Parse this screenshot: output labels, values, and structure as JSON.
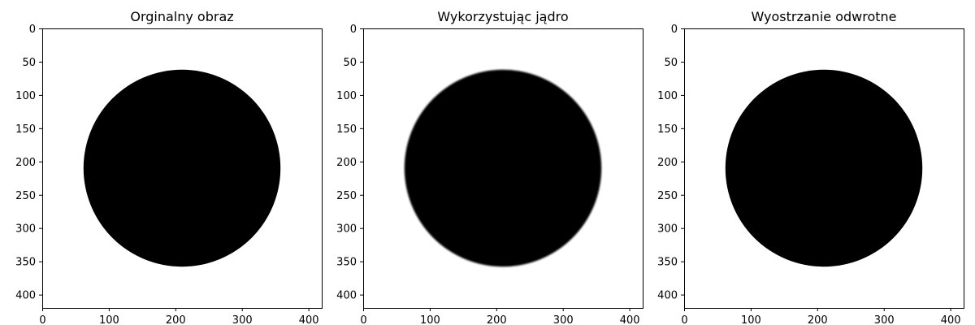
{
  "chart_data": [
    {
      "type": "image",
      "title": "Orginalny obraz",
      "image_shape": [
        420,
        420
      ],
      "colormap": "gray",
      "content": {
        "shape": "filled-circle",
        "center": [
          210,
          210
        ],
        "radius": 148,
        "fill": "#000000",
        "background": "#ffffff"
      },
      "xlim": [
        0,
        420
      ],
      "ylim": [
        420,
        0
      ],
      "xticks": [
        0,
        100,
        200,
        300,
        400
      ],
      "yticks": [
        0,
        50,
        100,
        150,
        200,
        250,
        300,
        350,
        400
      ],
      "xtick_labels": [
        "0",
        "100",
        "200",
        "300",
        "400"
      ],
      "ytick_labels": [
        "0",
        "50",
        "100",
        "150",
        "200",
        "250",
        "300",
        "350",
        "400"
      ],
      "xlabel": "",
      "ylabel": "",
      "grid": false,
      "edge": "sharp"
    },
    {
      "type": "image",
      "title": "Wykorzystując jądro",
      "image_shape": [
        420,
        420
      ],
      "colormap": "gray",
      "content": {
        "shape": "filled-circle",
        "center": [
          210,
          210
        ],
        "radius": 148,
        "fill": "#000000",
        "background": "#ffffff"
      },
      "xlim": [
        0,
        420
      ],
      "ylim": [
        420,
        0
      ],
      "xticks": [
        0,
        100,
        200,
        300,
        400
      ],
      "yticks": [
        0,
        50,
        100,
        150,
        200,
        250,
        300,
        350,
        400
      ],
      "xtick_labels": [
        "0",
        "100",
        "200",
        "300",
        "400"
      ],
      "ytick_labels": [
        "0",
        "50",
        "100",
        "150",
        "200",
        "250",
        "300",
        "350",
        "400"
      ],
      "xlabel": "",
      "ylabel": "",
      "grid": false,
      "edge": "soft"
    },
    {
      "type": "image",
      "title": "Wyostrzanie odwrotne",
      "image_shape": [
        420,
        420
      ],
      "colormap": "gray",
      "content": {
        "shape": "filled-circle",
        "center": [
          210,
          210
        ],
        "radius": 148,
        "fill": "#000000",
        "background": "#ffffff"
      },
      "xlim": [
        0,
        420
      ],
      "ylim": [
        420,
        0
      ],
      "xticks": [
        0,
        100,
        200,
        300,
        400
      ],
      "yticks": [
        0,
        50,
        100,
        150,
        200,
        250,
        300,
        350,
        400
      ],
      "xtick_labels": [
        "0",
        "100",
        "200",
        "300",
        "400"
      ],
      "ytick_labels": [
        "0",
        "50",
        "100",
        "150",
        "200",
        "250",
        "300",
        "350",
        "400"
      ],
      "xlabel": "",
      "ylabel": "",
      "grid": false,
      "edge": "sharp"
    }
  ]
}
